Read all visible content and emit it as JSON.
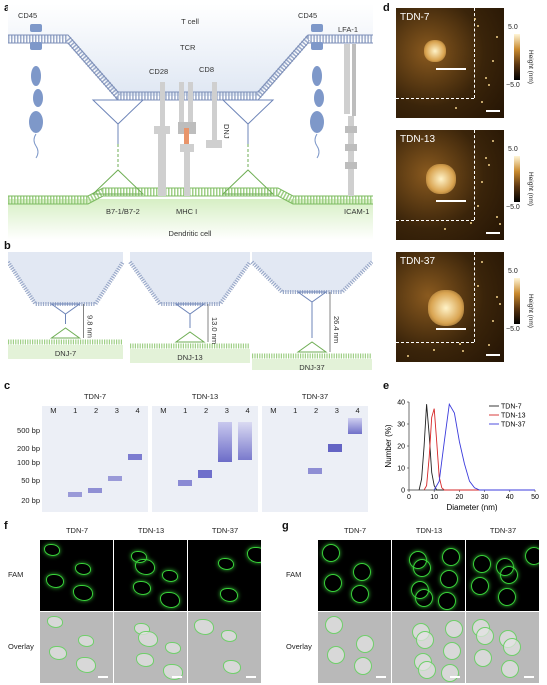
{
  "panel_labels": {
    "a": "a",
    "b": "b",
    "c": "c",
    "d": "d",
    "e": "e",
    "f": "f",
    "g": "g"
  },
  "panel_a": {
    "t_cell": "T cell",
    "dendritic_cell": "Dendritic cell",
    "cd45_left": "CD45",
    "cd45_right": "CD45",
    "lfa1": "LFA-1",
    "tcr": "TCR",
    "cd28": "CD28",
    "cd8": "CD8",
    "dnj": "DNJ",
    "b7": "B7-1/B7-2",
    "mhc": "MHC I",
    "icam": "ICAM-1"
  },
  "panel_b": {
    "items": [
      {
        "dist": "9.8 nm",
        "label": "DNJ-7"
      },
      {
        "dist": "13.0 nm",
        "label": "DNJ-13"
      },
      {
        "dist": "26.4 nm",
        "label": "DNJ-37"
      }
    ]
  },
  "panel_c": {
    "gels": [
      {
        "title": "TDN-7",
        "lanes": [
          "M",
          "1",
          "2",
          "3",
          "4"
        ]
      },
      {
        "title": "TDN-13",
        "lanes": [
          "M",
          "1",
          "2",
          "3",
          "4"
        ]
      },
      {
        "title": "TDN-37",
        "lanes": [
          "M",
          "1",
          "2",
          "3",
          "4"
        ]
      }
    ],
    "ladder": [
      "500 bp",
      "200 bp",
      "100 bp",
      "50 bp",
      "20 bp"
    ]
  },
  "panel_d": {
    "images": [
      {
        "label": "TDN-7"
      },
      {
        "label": "TDN-13"
      },
      {
        "label": "TDN-37"
      }
    ],
    "scale_max": "5.0",
    "scale_min": "−5.0",
    "scale_label": "Height (nm)"
  },
  "chart_data": {
    "type": "line",
    "xlabel": "Diameter (nm)",
    "ylabel": "Number (%)",
    "xlim": [
      0,
      50
    ],
    "ylim": [
      0,
      40
    ],
    "xticks": [
      0,
      10,
      20,
      30,
      40,
      50
    ],
    "yticks": [
      0,
      10,
      20,
      30,
      40
    ],
    "legend_position": "top-right",
    "series": [
      {
        "name": "TDN-7",
        "color": "#222222",
        "x": [
          4,
          5,
          6,
          7,
          8,
          9,
          10,
          11,
          12,
          14,
          50
        ],
        "y": [
          0,
          5,
          20,
          39,
          25,
          8,
          2,
          0,
          0,
          0,
          0
        ]
      },
      {
        "name": "TDN-13",
        "color": "#d62728",
        "x": [
          6,
          7,
          8,
          9,
          10,
          11,
          12,
          13,
          14,
          16,
          50
        ],
        "y": [
          0,
          2,
          15,
          33,
          37,
          22,
          6,
          1,
          0,
          0,
          0
        ]
      },
      {
        "name": "TDN-37",
        "color": "#3b3bdc",
        "x": [
          10,
          12,
          14,
          16,
          18,
          20,
          22,
          24,
          26,
          28,
          30,
          50
        ],
        "y": [
          0,
          4,
          22,
          39,
          35,
          22,
          12,
          4,
          1,
          0,
          0,
          0
        ]
      }
    ]
  },
  "panel_f": {
    "cols": [
      "TDN-7",
      "TDN-13",
      "TDN-37"
    ],
    "rows": [
      "FAM",
      "Overlay"
    ]
  },
  "panel_g": {
    "cols": [
      "TDN-7",
      "TDN-13",
      "TDN-37"
    ],
    "rows": [
      "FAM",
      "Overlay"
    ]
  }
}
